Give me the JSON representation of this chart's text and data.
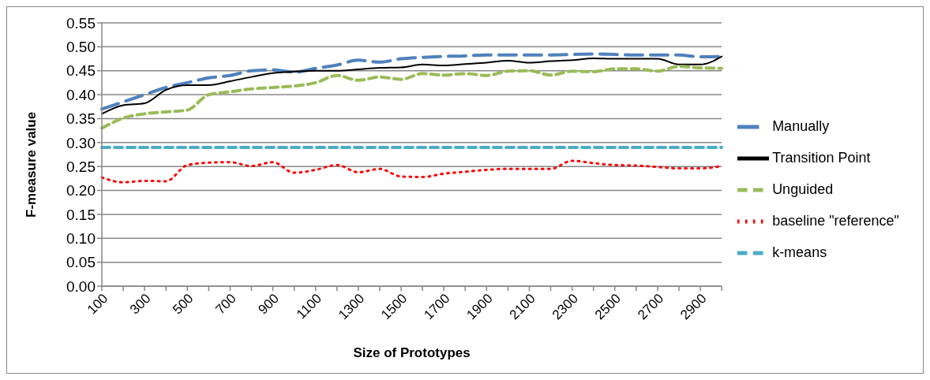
{
  "chart_data": {
    "type": "line",
    "xlabel": "Size of Prototypes",
    "ylabel": "F-measure value",
    "categories": [
      "100",
      null,
      "300",
      null,
      "500",
      null,
      "700",
      null,
      "900",
      null,
      "1100",
      null,
      "1300",
      null,
      "1500",
      null,
      "1700",
      null,
      "1900",
      null,
      "2100",
      null,
      "2300",
      null,
      "2500",
      null,
      "2700",
      null,
      "2900",
      null
    ],
    "series": [
      {
        "name": "Manually",
        "color": "#4f81bd",
        "line_style": "dashed",
        "values": [
          0.37,
          0.385,
          0.4,
          0.415,
          0.425,
          0.435,
          0.44,
          0.45,
          0.452,
          0.447,
          0.455,
          0.462,
          0.472,
          0.468,
          0.475,
          0.478,
          0.48,
          0.481,
          0.483,
          0.483,
          0.483,
          0.483,
          0.484,
          0.485,
          0.484,
          0.483,
          0.483,
          0.483,
          0.479,
          0.48
        ]
      },
      {
        "name": "Transition Point",
        "color": "#000000",
        "line_style": "solid",
        "values": [
          0.36,
          0.378,
          0.382,
          0.41,
          0.42,
          0.42,
          0.428,
          0.437,
          0.445,
          0.448,
          0.45,
          0.45,
          0.453,
          0.456,
          0.457,
          0.463,
          0.461,
          0.464,
          0.467,
          0.471,
          0.467,
          0.47,
          0.472,
          0.476,
          0.475,
          0.475,
          0.475,
          0.463,
          0.463,
          0.48
        ]
      },
      {
        "name": "Unguided",
        "color": "#9bbb59",
        "line_style": "dashed",
        "values": [
          0.33,
          0.351,
          0.36,
          0.364,
          0.368,
          0.4,
          0.406,
          0.412,
          0.415,
          0.418,
          0.425,
          0.44,
          0.43,
          0.437,
          0.432,
          0.444,
          0.441,
          0.444,
          0.44,
          0.449,
          0.45,
          0.441,
          0.449,
          0.448,
          0.454,
          0.454,
          0.449,
          0.459,
          0.456,
          0.455
        ]
      },
      {
        "name": "baseline \"reference\"",
        "color": "#ff0000",
        "line_style": "dotted",
        "values": [
          0.227,
          0.217,
          0.22,
          0.219,
          0.253,
          0.258,
          0.259,
          0.251,
          0.259,
          0.237,
          0.243,
          0.253,
          0.238,
          0.245,
          0.229,
          0.228,
          0.235,
          0.239,
          0.243,
          0.245,
          0.245,
          0.245,
          0.262,
          0.257,
          0.253,
          0.252,
          0.249,
          0.246,
          0.246,
          0.251
        ]
      },
      {
        "name": "k-means",
        "color": "#4bacc6",
        "line_style": "dashed",
        "values": [
          0.29,
          0.29,
          0.29,
          0.29,
          0.29,
          0.29,
          0.29,
          0.29,
          0.29,
          0.29,
          0.29,
          0.29,
          0.29,
          0.29,
          0.29,
          0.29,
          0.29,
          0.29,
          0.29,
          0.29,
          0.29,
          0.29,
          0.29,
          0.29,
          0.29,
          0.29,
          0.29,
          0.29,
          0.29,
          0.29
        ]
      }
    ],
    "ylim": [
      0,
      0.55
    ],
    "yticks": [
      {
        "value": 0,
        "label": "0.00"
      },
      {
        "value": 0.05,
        "label": "0.05"
      },
      {
        "value": 0.1,
        "label": "0.10"
      },
      {
        "value": 0.15,
        "label": "0.15"
      },
      {
        "value": 0.2,
        "label": "0.20"
      },
      {
        "value": 0.25,
        "label": "0.25"
      },
      {
        "value": 0.3,
        "label": "0.30"
      },
      {
        "value": 0.35,
        "label": "0.35"
      },
      {
        "value": 0.4,
        "label": "0.40"
      },
      {
        "value": 0.45,
        "label": "0.45"
      },
      {
        "value": 0.5,
        "label": "0.50"
      },
      {
        "value": 0.55,
        "label": "0.55"
      }
    ],
    "grid": "y",
    "legend": "right",
    "marker": "none"
  }
}
